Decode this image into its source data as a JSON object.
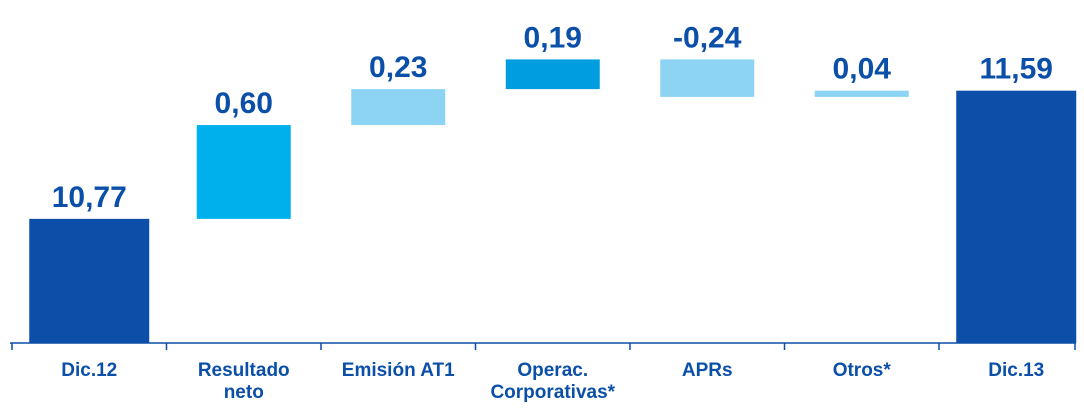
{
  "chart_data": {
    "type": "waterfall",
    "categories": [
      "Dic.12",
      "Resultado neto",
      "Emisión AT1",
      "Operac. Corporativas*",
      "APRs",
      "Otros*",
      "Dic.13"
    ],
    "values": [
      10.77,
      0.6,
      0.23,
      0.19,
      -0.24,
      0.04,
      11.59
    ],
    "value_labels": [
      "10,77",
      "0,60",
      "0,23",
      "0,19",
      "-0,24",
      "0,04",
      "11,59"
    ],
    "totals": [
      true,
      false,
      false,
      false,
      false,
      false,
      true
    ],
    "colors": [
      "#0b4fa8",
      "#00b0ec",
      "#8dd3f4",
      "#009ee0",
      "#8dd3f4",
      "#8dd3f4",
      "#0b4fa8"
    ],
    "ylim": [
      9.976,
      12.17
    ]
  }
}
